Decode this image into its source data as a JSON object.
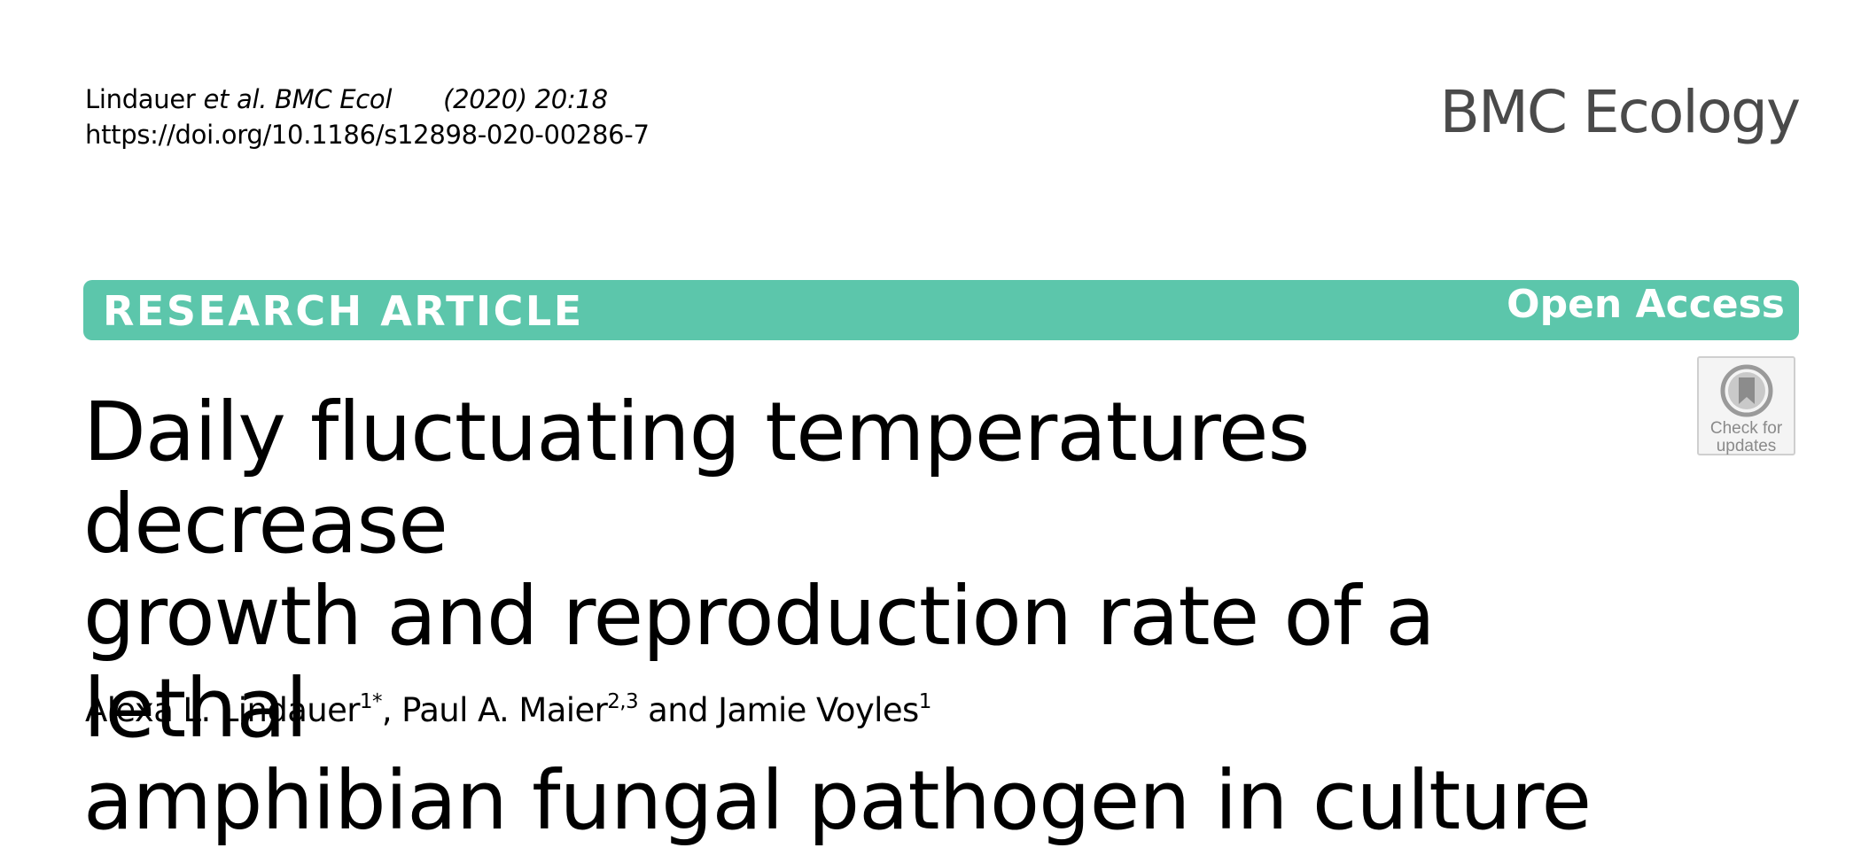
{
  "citation": {
    "authors": "Lindauer ",
    "et_al": "et al.",
    "journal_abbrev": " BMC Ecol",
    "year_volume": "(2020) 20:18",
    "doi": "https://doi.org/10.1186/s12898-020-00286-7"
  },
  "journal_name": "BMC Ecology",
  "banner": {
    "type": "RESEARCH ARTICLE",
    "access": "Open Access",
    "color": "#5cc6ab"
  },
  "check_updates": {
    "icon": "bookmark-circle-icon",
    "line1": "Check for",
    "line2": "updates"
  },
  "title": {
    "line1": "Daily fluctuating temperatures decrease",
    "line2": "growth and reproduction rate of a lethal",
    "line3": "amphibian fungal pathogen in culture"
  },
  "authors": [
    {
      "name": "Alexa L. Lindauer",
      "sup": "1*",
      "sep": ", "
    },
    {
      "name": "Paul A. Maier",
      "sup": "2,3",
      "sep": " and "
    },
    {
      "name": "Jamie Voyles",
      "sup": "1",
      "sep": ""
    }
  ]
}
